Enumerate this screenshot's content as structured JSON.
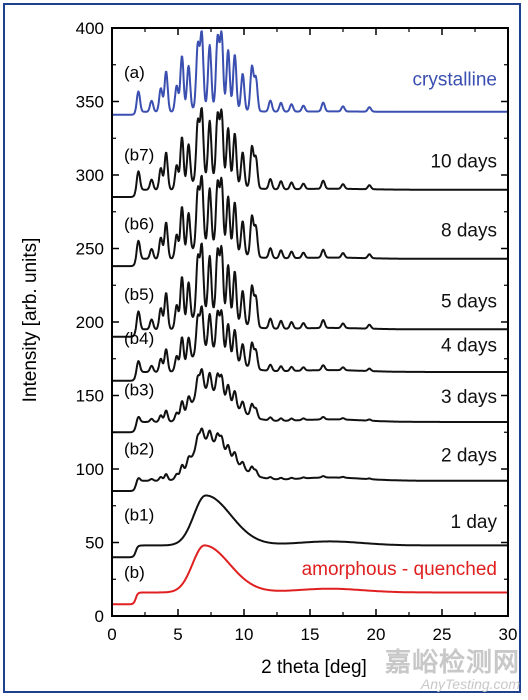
{
  "chart_data": {
    "type": "line",
    "title": "",
    "xlabel": "2 theta [deg]",
    "ylabel": "Intensity [arb. units]",
    "xlim": [
      0,
      30
    ],
    "ylim": [
      0,
      400
    ],
    "xticks": [
      0,
      5,
      10,
      15,
      20,
      25,
      30
    ],
    "yticks": [
      0,
      50,
      100,
      150,
      200,
      250,
      300,
      350,
      400
    ],
    "grid": false,
    "peaks": [
      {
        "x": 2.0,
        "h": 0.28
      },
      {
        "x": 3.0,
        "h": 0.15
      },
      {
        "x": 3.7,
        "h": 0.32
      },
      {
        "x": 4.1,
        "h": 0.55
      },
      {
        "x": 4.9,
        "h": 0.35
      },
      {
        "x": 5.3,
        "h": 0.75
      },
      {
        "x": 5.8,
        "h": 0.6
      },
      {
        "x": 6.5,
        "h": 0.85
      },
      {
        "x": 6.8,
        "h": 1.0
      },
      {
        "x": 7.4,
        "h": 0.85
      },
      {
        "x": 8.0,
        "h": 0.95
      },
      {
        "x": 8.3,
        "h": 1.0
      },
      {
        "x": 8.8,
        "h": 0.8
      },
      {
        "x": 9.3,
        "h": 0.75
      },
      {
        "x": 9.9,
        "h": 0.5
      },
      {
        "x": 10.6,
        "h": 0.6
      },
      {
        "x": 10.9,
        "h": 0.45
      },
      {
        "x": 12.0,
        "h": 0.15
      },
      {
        "x": 12.8,
        "h": 0.12
      },
      {
        "x": 13.6,
        "h": 0.1
      },
      {
        "x": 14.5,
        "h": 0.08
      },
      {
        "x": 16.0,
        "h": 0.12
      },
      {
        "x": 17.5,
        "h": 0.07
      },
      {
        "x": 19.5,
        "h": 0.06
      }
    ],
    "series": [
      {
        "name": "amorphous - quenched",
        "tag": "(b)",
        "color": "#e02020",
        "baseline": 8,
        "step": 8,
        "halo_height": 32,
        "halo_center": 7.0,
        "crystal_amplitude": 0,
        "crystal_fraction": 0
      },
      {
        "name": "1 day",
        "tag": "(b1)",
        "color": "#111111",
        "baseline": 40,
        "step": 8,
        "halo_height": 34,
        "halo_center": 7.1,
        "crystal_amplitude": 0,
        "crystal_fraction": 0
      },
      {
        "name": "2 days",
        "tag": "(b2)",
        "color": "#111111",
        "baseline": 85,
        "step": 7,
        "halo_height": 28,
        "halo_center": 7.0,
        "crystal_amplitude": 8,
        "crystal_fraction": 0.35
      },
      {
        "name": "3 days",
        "tag": "(b3)",
        "color": "#111111",
        "baseline": 125,
        "step": 7,
        "halo_height": 22,
        "halo_center": 7.0,
        "crystal_amplitude": 14,
        "crystal_fraction": 0.6
      },
      {
        "name": "4 days",
        "tag": "(b4)",
        "color": "#111111",
        "baseline": 160,
        "step": 6,
        "halo_height": 16,
        "halo_center": 7.0,
        "crystal_amplitude": 28,
        "crystal_fraction": 0.8
      },
      {
        "name": "5 days",
        "tag": "(b5)",
        "color": "#111111",
        "baseline": 190,
        "step": 5,
        "halo_height": 12,
        "halo_center": 7.0,
        "crystal_amplitude": 45,
        "crystal_fraction": 0.9
      },
      {
        "name": "8 days",
        "tag": "(b6)",
        "color": "#111111",
        "baseline": 238,
        "step": 5,
        "halo_height": 10,
        "halo_center": 7.0,
        "crystal_amplitude": 45,
        "crystal_fraction": 0.95
      },
      {
        "name": "10 days",
        "tag": "(b7)",
        "color": "#111111",
        "baseline": 285,
        "step": 5,
        "halo_height": 8,
        "halo_center": 7.0,
        "crystal_amplitude": 46,
        "crystal_fraction": 1.0
      },
      {
        "name": "crystalline",
        "tag": "(a)",
        "color": "#3a4fb0",
        "baseline": 341,
        "step": 2,
        "halo_height": 3,
        "halo_center": 7.0,
        "crystal_amplitude": 50,
        "crystal_fraction": 1.0
      }
    ]
  },
  "watermark": {
    "cn": "嘉峪检测网",
    "en": "AnyTesting.com"
  }
}
